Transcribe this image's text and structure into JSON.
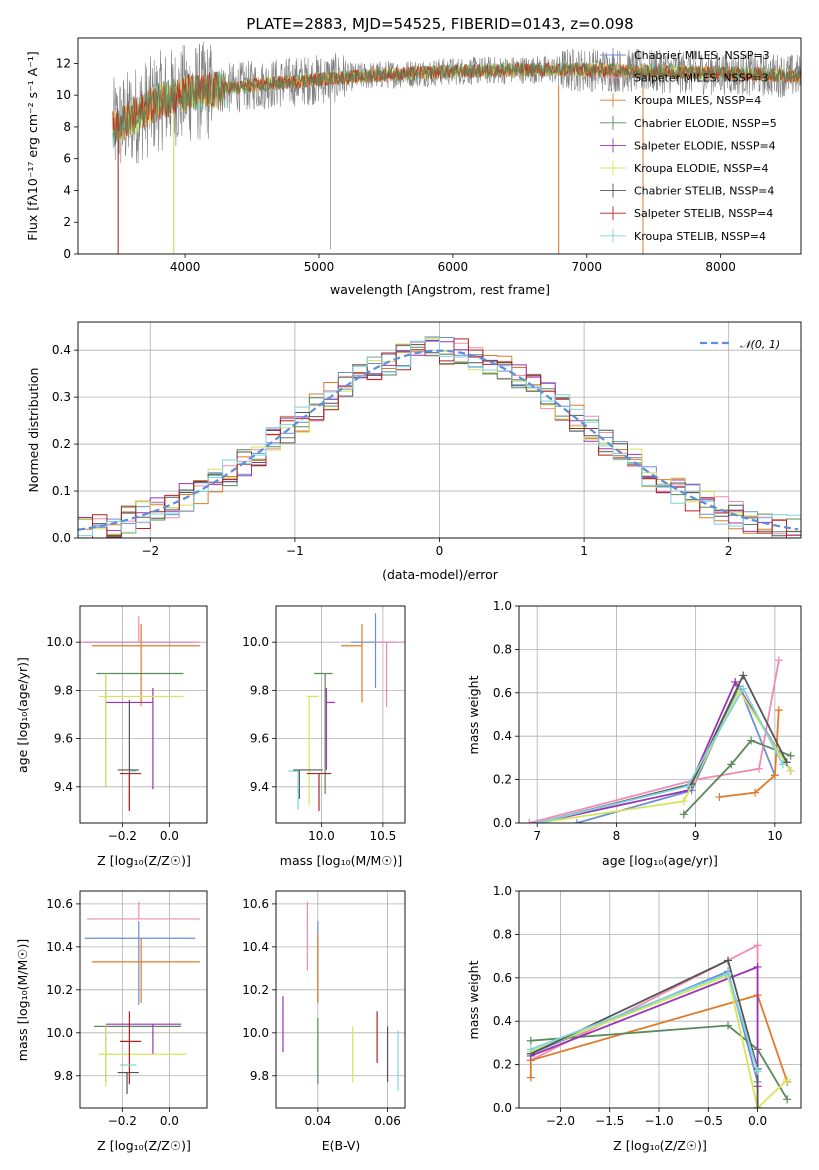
{
  "colors": {
    "chabrier_miles": "#6a8fd6",
    "salpeter_miles": "#f08cb4",
    "kroupa_miles": "#e07b2a",
    "chabrier_elodie": "#5a8a5a",
    "salpeter_elodie": "#9b34b4",
    "kroupa_elodie": "#d4e65a",
    "chabrier_stelib": "#555555",
    "salpeter_stelib": "#b22222",
    "kroupa_stelib": "#7fd3e0",
    "normal_curve": "#5b8fd9"
  },
  "chart_data": [
    {
      "id": "spectrum",
      "type": "line",
      "title": "PLATE=2883, MJD=54525, FIBERID=0143, z=0.098",
      "xlabel": "wavelength [Angstrom, rest frame]",
      "ylabel": "Flux [fλ10⁻¹⁷ erg cm⁻² s⁻¹ A⁻¹]",
      "xlim": [
        3200,
        8600
      ],
      "ylim": [
        0,
        13.6
      ],
      "xticks": [
        4000,
        5000,
        6000,
        7000,
        8000
      ],
      "yticks": [
        0,
        2,
        4,
        6,
        8,
        10,
        12
      ],
      "data_range": [
        3460,
        8600
      ],
      "legend_position": "upper right",
      "series": [
        {
          "name": "Chabrier MILES, NSSP=3",
          "color_key": "chabrier_miles"
        },
        {
          "name": "Salpeter MILES, NSSP=3",
          "color_key": "salpeter_miles"
        },
        {
          "name": "Kroupa MILES, NSSP=4",
          "color_key": "kroupa_miles"
        },
        {
          "name": "Chabrier ELODIE, NSSP=5",
          "color_key": "chabrier_elodie"
        },
        {
          "name": "Salpeter ELODIE, NSSP=4",
          "color_key": "salpeter_elodie"
        },
        {
          "name": "Kroupa ELODIE, NSSP=4",
          "color_key": "kroupa_elodie"
        },
        {
          "name": "Chabrier STELIB, NSSP=4",
          "color_key": "chabrier_stelib"
        },
        {
          "name": "Salpeter STELIB, NSSP=4",
          "color_key": "salpeter_stelib"
        },
        {
          "name": "Kroupa STELIB, NSSP=4",
          "color_key": "kroupa_stelib"
        }
      ],
      "continuum": [
        [
          3460,
          7.9
        ],
        [
          3600,
          8.6
        ],
        [
          3800,
          9.6
        ],
        [
          4000,
          10.1
        ],
        [
          4500,
          10.6
        ],
        [
          5000,
          11.0
        ],
        [
          5500,
          11.3
        ],
        [
          6000,
          11.5
        ],
        [
          6500,
          11.6
        ],
        [
          7000,
          11.6
        ],
        [
          7500,
          11.5
        ],
        [
          8000,
          11.4
        ],
        [
          8600,
          11.2
        ]
      ],
      "spikes": [
        [
          3500,
          0
        ],
        [
          3915,
          0
        ],
        [
          5085,
          0.3
        ],
        [
          6790,
          0
        ],
        [
          7420,
          0
        ]
      ]
    },
    {
      "id": "residuals",
      "type": "line",
      "xlabel": "(data-model)/error",
      "ylabel": "Normed distribution",
      "xlim": [
        -2.5,
        2.5
      ],
      "ylim": [
        0,
        0.46
      ],
      "xticks": [
        -2,
        -1,
        0,
        1,
        2
      ],
      "yticks": [
        0,
        0.1,
        0.2,
        0.3,
        0.4
      ],
      "bin_width": 0.1,
      "legend": "𝒩(0, 1)",
      "legend_position": "upper right"
    },
    {
      "id": "age_vs_Z",
      "type": "scatter",
      "xlabel": "Z [log₁₀(Z/Z☉)]",
      "ylabel": "age  [log₁₀(age/yr)]",
      "xlim": [
        -0.38,
        0.16
      ],
      "ylim": [
        9.25,
        10.15
      ],
      "xticks": [
        -0.2,
        0.0
      ],
      "xticklabels": [
        "−0.2",
        "0.0"
      ],
      "yticks": [
        9.4,
        9.6,
        9.8,
        10.0
      ],
      "points": [
        {
          "key": "chabrier_miles",
          "x": -0.13,
          "y": 10.0,
          "xerr": [
            0.23,
            0.24
          ],
          "yerr": [
            0.0,
            0.0
          ]
        },
        {
          "key": "salpeter_miles",
          "x": -0.13,
          "y": 10.0,
          "xerr": [
            0.25,
            0.26
          ],
          "yerr": [
            0.0,
            0.11
          ]
        },
        {
          "key": "kroupa_miles",
          "x": -0.12,
          "y": 9.985,
          "xerr": [
            0.21,
            0.25
          ],
          "yerr": [
            0.25,
            0.09
          ]
        },
        {
          "key": "chabrier_elodie",
          "x": -0.27,
          "y": 9.87,
          "xerr": [
            0.04,
            0.33
          ],
          "yerr": [
            0.47,
            0.0
          ]
        },
        {
          "key": "salpeter_elodie",
          "x": -0.07,
          "y": 9.75,
          "xerr": [
            0.2,
            0.0
          ],
          "yerr": [
            0.36,
            0.06
          ]
        },
        {
          "key": "kroupa_elodie",
          "x": -0.27,
          "y": 9.775,
          "xerr": [
            0.03,
            0.33
          ],
          "yerr": [
            0.375,
            0.095
          ]
        },
        {
          "key": "chabrier_stelib",
          "x": -0.17,
          "y": 9.47,
          "xerr": [
            0.05,
            0.04
          ],
          "yerr": [
            0.17,
            0.29
          ]
        },
        {
          "key": "salpeter_stelib",
          "x": -0.17,
          "y": 9.455,
          "xerr": [
            0.04,
            0.05
          ],
          "yerr": [
            0.155,
            0.0
          ]
        },
        {
          "key": "kroupa_stelib",
          "x": -0.17,
          "y": 9.465,
          "xerr": [
            0.0,
            0.03
          ],
          "yerr": [
            0.0,
            0.0
          ]
        }
      ]
    },
    {
      "id": "age_vs_mass",
      "type": "scatter",
      "xlabel": "mass [log₁₀(M/M☉)]",
      "ylabel": "",
      "xlim": [
        9.63,
        10.68
      ],
      "ylim": [
        9.25,
        10.15
      ],
      "xticks": [
        10.0,
        10.5
      ],
      "yticks": [
        9.4,
        9.6,
        9.8,
        10.0
      ],
      "points": [
        {
          "key": "chabrier_miles",
          "x": 10.44,
          "y": 10.0,
          "xerr": [
            0.2,
            0.15
          ],
          "yerr": [
            0.19,
            0.12
          ]
        },
        {
          "key": "salpeter_miles",
          "x": 10.53,
          "y": 10.0,
          "xerr": [
            0.09,
            0.15
          ],
          "yerr": [
            0.27,
            0.0
          ]
        },
        {
          "key": "kroupa_miles",
          "x": 10.33,
          "y": 9.985,
          "xerr": [
            0.17,
            0.0
          ],
          "yerr": [
            0.235,
            0.09
          ]
        },
        {
          "key": "chabrier_elodie",
          "x": 10.03,
          "y": 9.87,
          "xerr": [
            0.09,
            0.06
          ],
          "yerr": [
            0.5,
            0.0
          ]
        },
        {
          "key": "salpeter_elodie",
          "x": 10.04,
          "y": 9.75,
          "xerr": [
            0.0,
            0.07
          ],
          "yerr": [
            0.28,
            0.06
          ]
        },
        {
          "key": "kroupa_elodie",
          "x": 9.9,
          "y": 9.775,
          "xerr": [
            0.02,
            0.08
          ],
          "yerr": [
            0.45,
            0.0
          ]
        },
        {
          "key": "chabrier_stelib",
          "x": 9.82,
          "y": 9.47,
          "xerr": [
            0.05,
            0.19
          ],
          "yerr": [
            0.12,
            0.0
          ]
        },
        {
          "key": "salpeter_stelib",
          "x": 9.98,
          "y": 9.455,
          "xerr": [
            0.1,
            0.1
          ],
          "yerr": [
            0.155,
            0.0
          ]
        },
        {
          "key": "kroupa_stelib",
          "x": 9.81,
          "y": 9.465,
          "xerr": [
            0.08,
            0.0
          ],
          "yerr": [
            0.16,
            0.0
          ]
        }
      ]
    },
    {
      "id": "weights_vs_age",
      "type": "line",
      "xlabel": "age  [log₁₀(age/yr)]",
      "ylabel": "mass weight",
      "xlim": [
        6.77,
        10.33
      ],
      "ylim": [
        0,
        1.0
      ],
      "xticks": [
        7,
        8,
        9,
        10
      ],
      "yticks": [
        0.0,
        0.2,
        0.4,
        0.6,
        0.8,
        1.0
      ],
      "series": [
        {
          "key": "chabrier_miles",
          "points": [
            [
              7.5,
              0.0
            ],
            [
              8.95,
              0.15
            ],
            [
              9.55,
              0.63
            ],
            [
              10.0,
              0.22
            ]
          ]
        },
        {
          "key": "salpeter_miles",
          "points": [
            [
              6.9,
              0.0
            ],
            [
              9.0,
              0.2
            ],
            [
              9.8,
              0.25
            ],
            [
              10.05,
              0.75
            ]
          ]
        },
        {
          "key": "kroupa_miles",
          "points": [
            [
              9.3,
              0.12
            ],
            [
              9.75,
              0.14
            ],
            [
              10.0,
              0.22
            ],
            [
              10.05,
              0.52
            ]
          ]
        },
        {
          "key": "chabrier_elodie",
          "points": [
            [
              8.85,
              0.04
            ],
            [
              9.45,
              0.27
            ],
            [
              9.7,
              0.38
            ],
            [
              10.2,
              0.31
            ]
          ]
        },
        {
          "key": "salpeter_elodie",
          "points": [
            [
              7.0,
              0.0
            ],
            [
              8.9,
              0.15
            ],
            [
              9.5,
              0.65
            ],
            [
              10.2,
              0.24
            ]
          ]
        },
        {
          "key": "kroupa_elodie",
          "points": [
            [
              7.0,
              0.0
            ],
            [
              8.85,
              0.1
            ],
            [
              9.55,
              0.61
            ],
            [
              10.2,
              0.24
            ]
          ]
        },
        {
          "key": "chabrier_stelib",
          "points": [
            [
              7.0,
              0.0
            ],
            [
              8.95,
              0.18
            ],
            [
              9.6,
              0.68
            ],
            [
              10.15,
              0.28
            ]
          ]
        },
        {
          "key": "kroupa_stelib",
          "points": [
            [
              7.0,
              0.0
            ],
            [
              8.9,
              0.17
            ],
            [
              9.6,
              0.62
            ],
            [
              10.1,
              0.27
            ]
          ]
        }
      ]
    },
    {
      "id": "mass_vs_Z",
      "type": "scatter",
      "xlabel": "Z [log₁₀(Z/Z☉)]",
      "ylabel": "mass [log₁₀(M/M☉)]",
      "xlim": [
        -0.38,
        0.16
      ],
      "ylim": [
        9.65,
        10.66
      ],
      "xticks": [
        -0.2,
        0.0
      ],
      "xticklabels": [
        "−0.2",
        "0.0"
      ],
      "yticks": [
        9.8,
        10.0,
        10.2,
        10.4,
        10.6
      ],
      "points": [
        {
          "key": "chabrier_miles",
          "x": -0.13,
          "y": 10.44,
          "xerr": [
            0.23,
            0.24
          ],
          "yerr": [
            0.31,
            0.08
          ]
        },
        {
          "key": "salpeter_miles",
          "x": -0.13,
          "y": 10.53,
          "xerr": [
            0.22,
            0.26
          ],
          "yerr": [
            0.0,
            0.08
          ]
        },
        {
          "key": "kroupa_miles",
          "x": -0.12,
          "y": 10.33,
          "xerr": [
            0.21,
            0.25
          ],
          "yerr": [
            0.19,
            0.11
          ]
        },
        {
          "key": "chabrier_elodie",
          "x": -0.27,
          "y": 10.03,
          "xerr": [
            0.05,
            0.32
          ],
          "yerr": [
            0.26,
            0.0
          ]
        },
        {
          "key": "salpeter_elodie",
          "x": -0.07,
          "y": 10.04,
          "xerr": [
            0.2,
            0.12
          ],
          "yerr": [
            0.14,
            0.0
          ]
        },
        {
          "key": "kroupa_elodie",
          "x": -0.27,
          "y": 9.9,
          "xerr": [
            0.03,
            0.34
          ],
          "yerr": [
            0.15,
            0.13
          ]
        },
        {
          "key": "chabrier_stelib",
          "x": -0.18,
          "y": 9.815,
          "xerr": [
            0.04,
            0.05
          ],
          "yerr": [
            0.1,
            0.0
          ]
        },
        {
          "key": "salpeter_stelib",
          "x": -0.17,
          "y": 9.96,
          "xerr": [
            0.04,
            0.05
          ],
          "yerr": [
            0.2,
            0.14
          ]
        },
        {
          "key": "kroupa_stelib",
          "x": -0.18,
          "y": 9.85,
          "xerr": [
            0.03,
            0.04
          ],
          "yerr": [
            0.0,
            0.0
          ]
        }
      ]
    },
    {
      "id": "mass_vs_ebv",
      "type": "scatter",
      "xlabel": "E(B-V)",
      "ylabel": "",
      "xlim": [
        0.028,
        0.065
      ],
      "ylim": [
        9.65,
        10.66
      ],
      "xticks": [
        0.04,
        0.06
      ],
      "yticks": [
        9.8,
        10.0,
        10.2,
        10.4,
        10.6
      ],
      "points": [
        {
          "key": "chabrier_miles",
          "x": 0.04,
          "y": 10.44,
          "xerr": [
            0,
            0
          ],
          "yerr": [
            0.3,
            0.08
          ]
        },
        {
          "key": "salpeter_miles",
          "x": 0.037,
          "y": 10.45,
          "xerr": [
            0,
            0
          ],
          "yerr": [
            0.16,
            0.16
          ]
        },
        {
          "key": "kroupa_miles",
          "x": 0.04,
          "y": 10.33,
          "xerr": [
            0,
            0
          ],
          "yerr": [
            0.19,
            0.13
          ]
        },
        {
          "key": "chabrier_elodie",
          "x": 0.04,
          "y": 9.92,
          "xerr": [
            0,
            0
          ],
          "yerr": [
            0.16,
            0.15
          ]
        },
        {
          "key": "salpeter_elodie",
          "x": 0.03,
          "y": 10.04,
          "xerr": [
            0,
            0
          ],
          "yerr": [
            0.13,
            0.13
          ]
        },
        {
          "key": "kroupa_elodie",
          "x": 0.05,
          "y": 9.9,
          "xerr": [
            0,
            0
          ],
          "yerr": [
            0.13,
            0.13
          ]
        },
        {
          "key": "chabrier_stelib",
          "x": 0.06,
          "y": 9.9,
          "xerr": [
            0,
            0
          ],
          "yerr": [
            0.13,
            0.13
          ]
        },
        {
          "key": "salpeter_stelib",
          "x": 0.057,
          "y": 9.98,
          "xerr": [
            0,
            0
          ],
          "yerr": [
            0.12,
            0.12
          ]
        },
        {
          "key": "kroupa_stelib",
          "x": 0.063,
          "y": 9.87,
          "xerr": [
            0,
            0
          ],
          "yerr": [
            0.14,
            0.14
          ]
        }
      ]
    },
    {
      "id": "weights_vs_Z",
      "type": "line",
      "xlabel": "Z [log₁₀(Z/Z☉)]",
      "ylabel": "mass weight",
      "xlim": [
        -2.42,
        0.44
      ],
      "ylim": [
        0,
        1.0
      ],
      "xticks": [
        -2.0,
        -1.5,
        -1.0,
        -0.5,
        0.0
      ],
      "xticklabels": [
        "−2.0",
        "−1.5",
        "−1.0",
        "−0.5",
        "0.0"
      ],
      "yticks": [
        0.0,
        0.2,
        0.4,
        0.6,
        0.8,
        1.0
      ],
      "series": [
        {
          "key": "chabrier_miles",
          "points": [
            [
              -2.3,
              0.25
            ],
            [
              -0.3,
              0.63
            ],
            [
              0.0,
              0.12
            ]
          ]
        },
        {
          "key": "salpeter_miles",
          "points": [
            [
              -2.3,
              0.22
            ],
            [
              0.0,
              0.75
            ],
            [
              0.0,
              0.0
            ]
          ]
        },
        {
          "key": "kroupa_miles",
          "points": [
            [
              -2.3,
              0.14
            ],
            [
              -2.3,
              0.22
            ],
            [
              0.0,
              0.52
            ],
            [
              0.3,
              0.12
            ]
          ]
        },
        {
          "key": "chabrier_elodie",
          "points": [
            [
              -2.3,
              0.31
            ],
            [
              -0.3,
              0.38
            ],
            [
              0.0,
              0.27
            ],
            [
              0.3,
              0.04
            ]
          ]
        },
        {
          "key": "salpeter_elodie",
          "points": [
            [
              -2.3,
              0.24
            ],
            [
              0.0,
              0.65
            ],
            [
              0.0,
              0.1
            ]
          ]
        },
        {
          "key": "kroupa_elodie",
          "points": [
            [
              -2.3,
              0.26
            ],
            [
              -0.3,
              0.61
            ],
            [
              0.0,
              0.0
            ],
            [
              0.3,
              0.13
            ]
          ]
        },
        {
          "key": "chabrier_stelib",
          "points": [
            [
              -2.3,
              0.25
            ],
            [
              -0.3,
              0.68
            ],
            [
              0.0,
              0.18
            ],
            [
              0.0,
              0.0
            ]
          ]
        },
        {
          "key": "kroupa_stelib",
          "points": [
            [
              -2.3,
              0.27
            ],
            [
              -0.3,
              0.62
            ],
            [
              0.0,
              0.17
            ]
          ]
        }
      ]
    }
  ]
}
